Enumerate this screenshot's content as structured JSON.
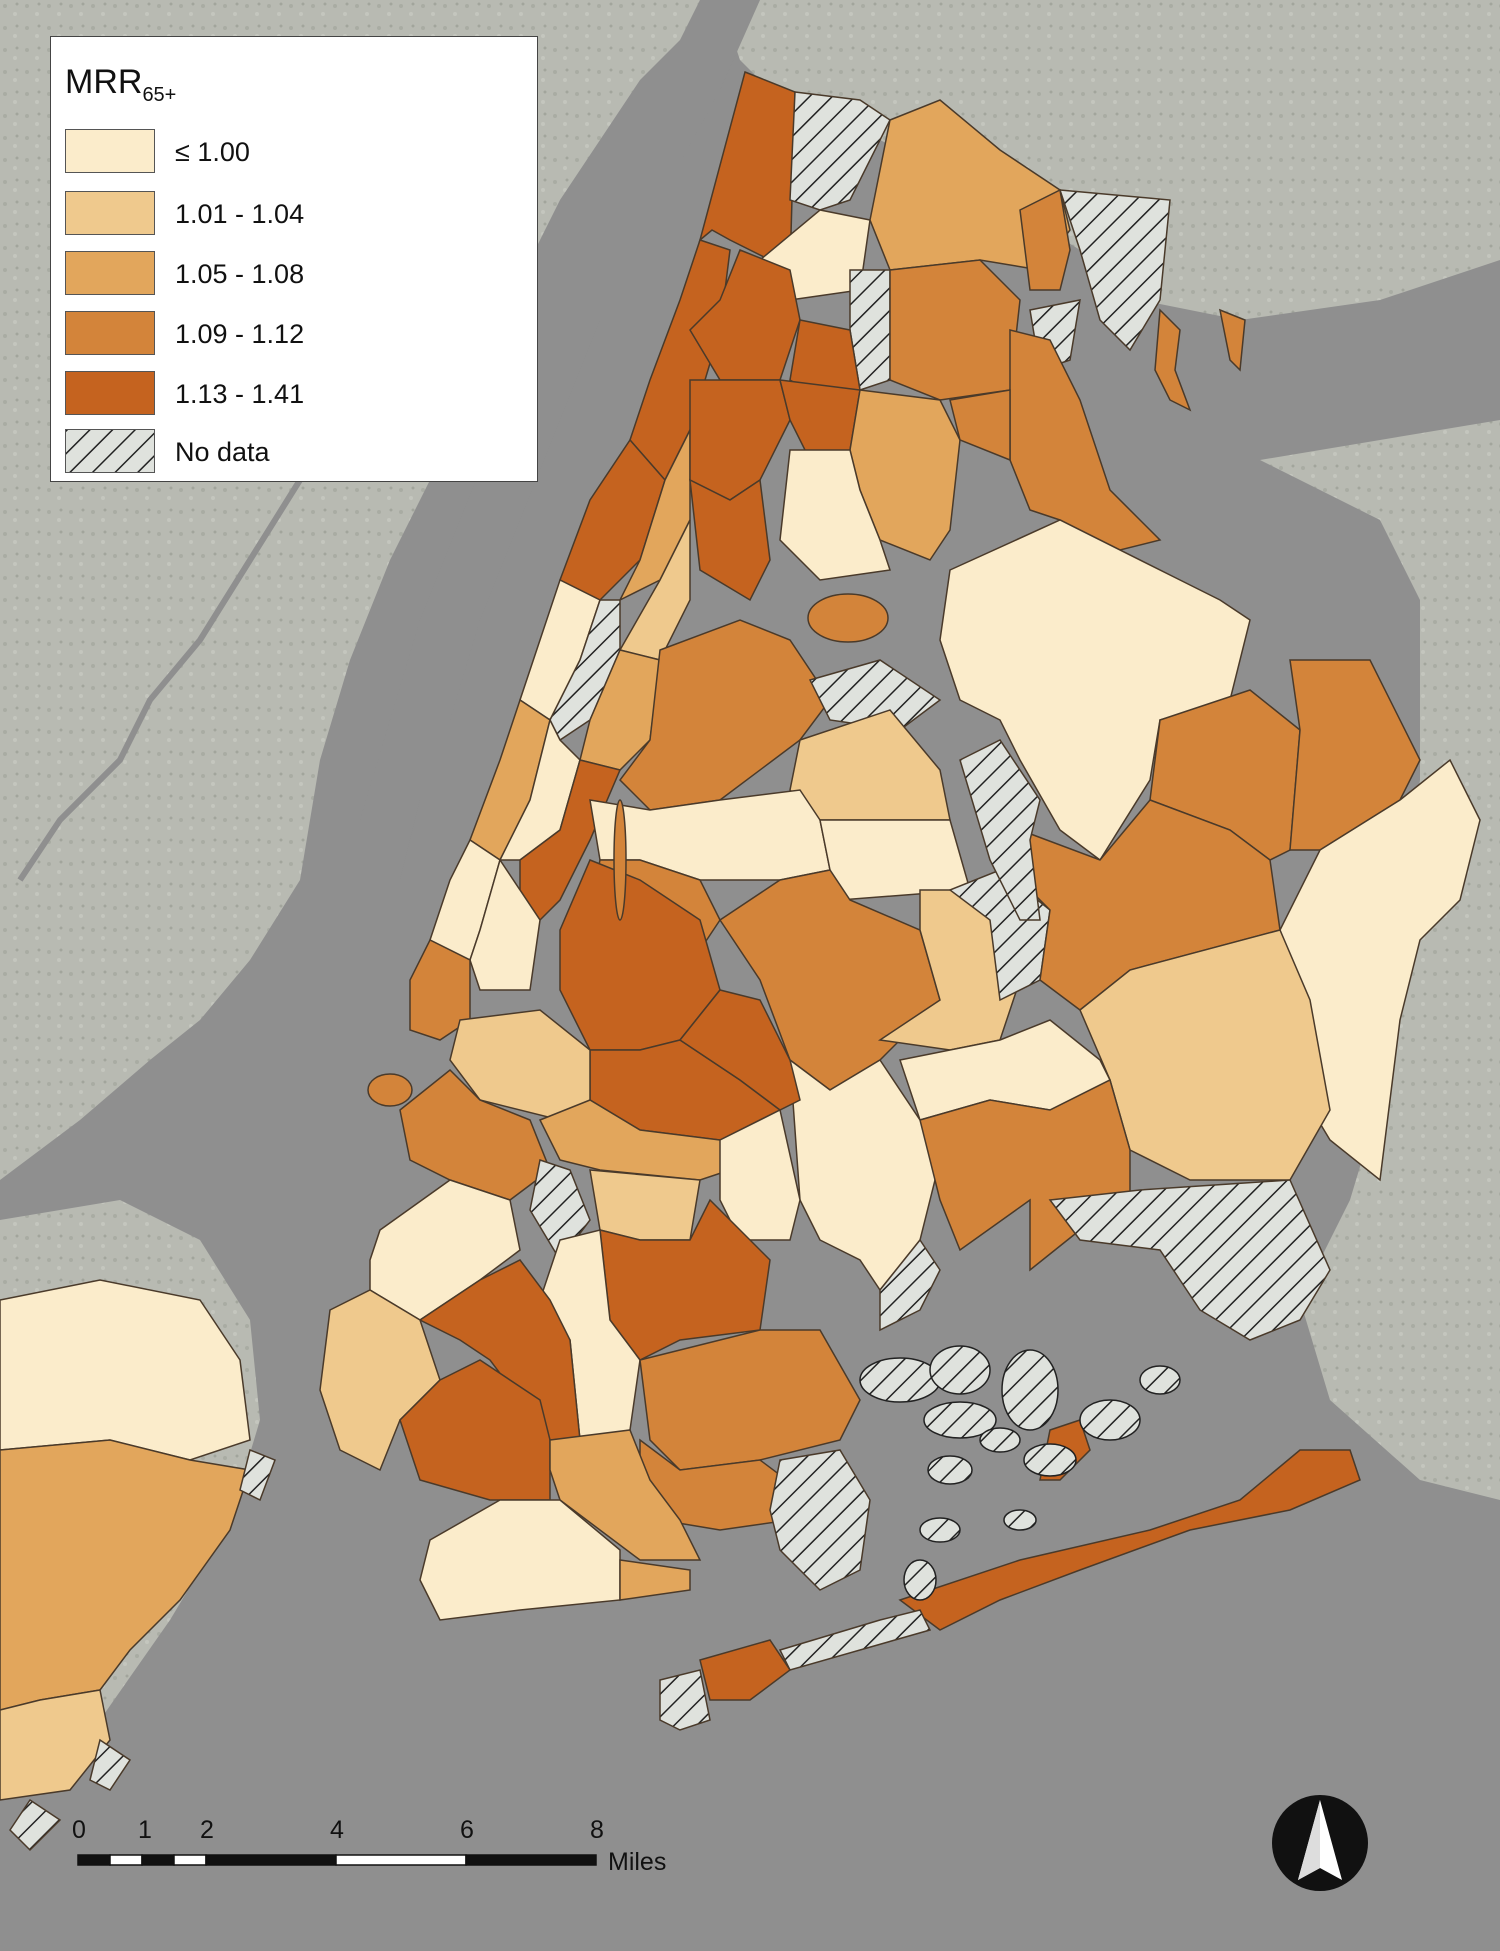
{
  "legend": {
    "title_main": "MRR",
    "title_sub": "65+",
    "classes": [
      {
        "label": "≤ 1.00",
        "color": "#fbeccb"
      },
      {
        "label": "1.01 - 1.04",
        "color": "#efc98d"
      },
      {
        "label": "1.05 - 1.08",
        "color": "#e2a65c"
      },
      {
        "label": "1.09 - 1.12",
        "color": "#d3843a"
      },
      {
        "label": "1.13 - 1.41",
        "color": "#c5631f"
      },
      {
        "label": "No data",
        "color": "hatch"
      }
    ]
  },
  "scale_bar": {
    "ticks": [
      "0",
      "1",
      "2",
      "4",
      "6",
      "8"
    ],
    "unit": "Miles"
  },
  "north_arrow": {
    "icon": "north-arrow-icon"
  },
  "colors": {
    "water": "#8f8f8f",
    "land_background": "#b7b9b1",
    "boundary": "#4a3a2a"
  }
}
